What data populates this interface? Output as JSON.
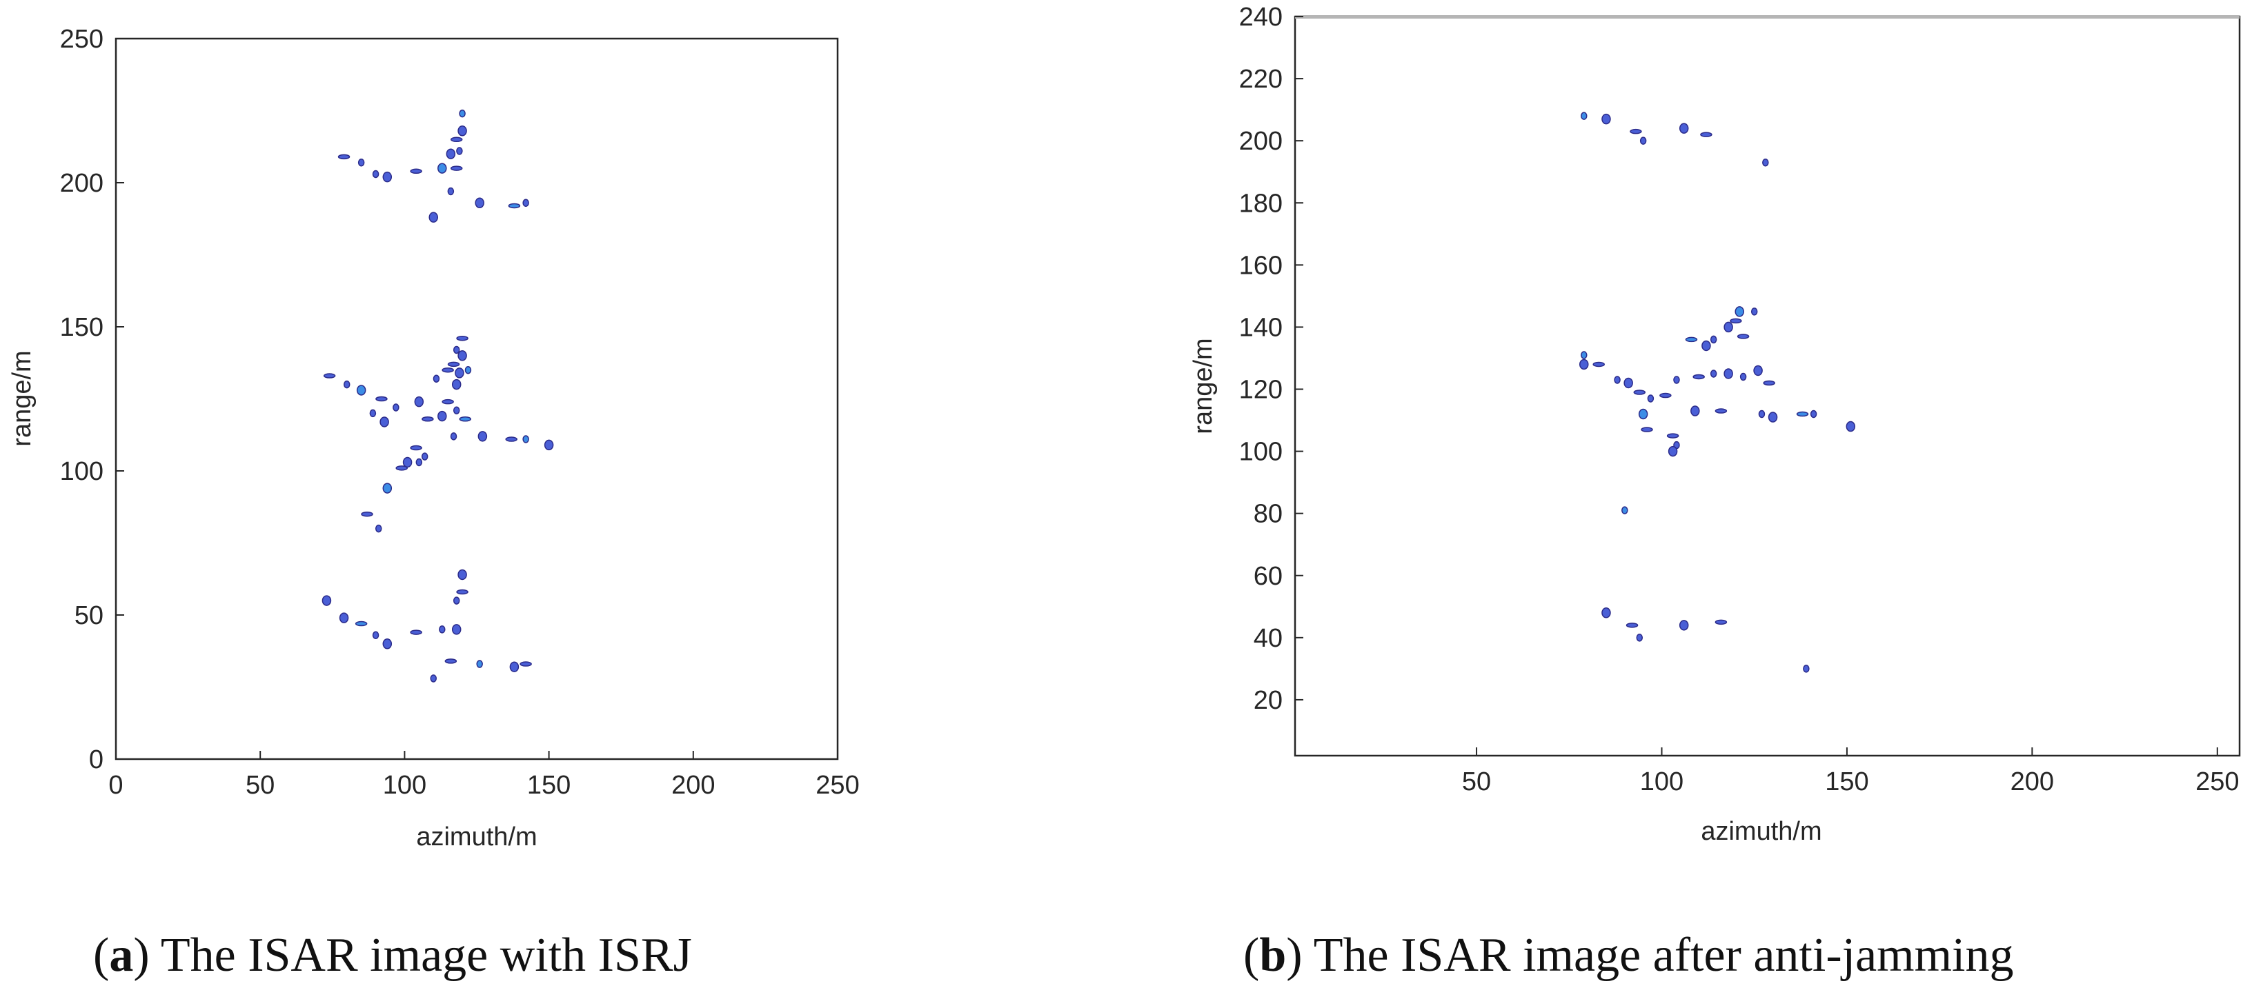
{
  "colors": {
    "blob_fill": "#4a5fd6",
    "blob_stroke": "#2b2b8a",
    "hot": "#3c8de6",
    "axis": "#262626"
  },
  "captions": [
    {
      "label": "a",
      "text": "The ISAR image with ISRJ"
    },
    {
      "label": "b",
      "text": "The ISAR image after anti-jamming"
    }
  ],
  "chart_data": [
    {
      "type": "scatter",
      "title": "",
      "xlabel": "azimuth/m",
      "ylabel": "range/m",
      "xlim": [
        0,
        250
      ],
      "ylim": [
        0,
        250
      ],
      "xticks": [
        "0",
        "50",
        "100",
        "150",
        "200",
        "250"
      ],
      "yticks": [
        "0",
        "50",
        "100",
        "150",
        "200",
        "250"
      ],
      "grid": false,
      "points": [
        [
          120,
          224
        ],
        [
          120,
          218
        ],
        [
          118,
          215
        ],
        [
          119,
          211
        ],
        [
          116,
          210
        ],
        [
          79,
          209
        ],
        [
          85,
          207
        ],
        [
          113,
          205
        ],
        [
          118,
          205
        ],
        [
          90,
          203
        ],
        [
          94,
          202
        ],
        [
          104,
          204
        ],
        [
          116,
          197
        ],
        [
          126,
          193
        ],
        [
          138,
          192
        ],
        [
          142,
          193
        ],
        [
          110,
          188
        ],
        [
          120,
          146
        ],
        [
          118,
          142
        ],
        [
          120,
          140
        ],
        [
          117,
          137
        ],
        [
          122,
          135
        ],
        [
          119,
          134
        ],
        [
          115,
          135
        ],
        [
          111,
          132
        ],
        [
          118,
          130
        ],
        [
          74,
          133
        ],
        [
          80,
          130
        ],
        [
          85,
          128
        ],
        [
          92,
          125
        ],
        [
          97,
          122
        ],
        [
          105,
          124
        ],
        [
          115,
          124
        ],
        [
          118,
          121
        ],
        [
          113,
          119
        ],
        [
          121,
          118
        ],
        [
          89,
          120
        ],
        [
          93,
          117
        ],
        [
          108,
          118
        ],
        [
          117,
          112
        ],
        [
          127,
          112
        ],
        [
          137,
          111
        ],
        [
          142,
          111
        ],
        [
          150,
          109
        ],
        [
          104,
          108
        ],
        [
          107,
          105
        ],
        [
          101,
          103
        ],
        [
          99,
          101
        ],
        [
          105,
          103
        ],
        [
          94,
          94
        ],
        [
          87,
          85
        ],
        [
          91,
          80
        ],
        [
          120,
          64
        ],
        [
          120,
          58
        ],
        [
          118,
          55
        ],
        [
          79,
          49
        ],
        [
          85,
          47
        ],
        [
          90,
          43
        ],
        [
          94,
          40
        ],
        [
          104,
          44
        ],
        [
          113,
          45
        ],
        [
          118,
          45
        ],
        [
          116,
          34
        ],
        [
          126,
          33
        ],
        [
          138,
          32
        ],
        [
          142,
          33
        ],
        [
          110,
          28
        ],
        [
          73,
          55
        ]
      ]
    },
    {
      "type": "scatter",
      "title": "",
      "xlabel": "azimuth/m",
      "ylabel": "range/m",
      "xlim": [
        1,
        256
      ],
      "ylim": [
        2,
        240
      ],
      "xticks": [
        "50",
        "100",
        "150",
        "200",
        "250"
      ],
      "yticks": [
        "20",
        "40",
        "60",
        "80",
        "100",
        "120",
        "140",
        "160",
        "180",
        "200",
        "220",
        "240"
      ],
      "grid": false,
      "points": [
        [
          79,
          208
        ],
        [
          85,
          207
        ],
        [
          93,
          203
        ],
        [
          95,
          200
        ],
        [
          106,
          204
        ],
        [
          112,
          202
        ],
        [
          128,
          193
        ],
        [
          121,
          145
        ],
        [
          120,
          142
        ],
        [
          125,
          145
        ],
        [
          118,
          140
        ],
        [
          122,
          137
        ],
        [
          114,
          136
        ],
        [
          112,
          134
        ],
        [
          108,
          136
        ],
        [
          114,
          125
        ],
        [
          118,
          125
        ],
        [
          110,
          124
        ],
        [
          122,
          124
        ],
        [
          126,
          126
        ],
        [
          129,
          122
        ],
        [
          79,
          131
        ],
        [
          79,
          128
        ],
        [
          83,
          128
        ],
        [
          88,
          123
        ],
        [
          91,
          122
        ],
        [
          94,
          119
        ],
        [
          97,
          117
        ],
        [
          95,
          112
        ],
        [
          101,
          118
        ],
        [
          104,
          123
        ],
        [
          109,
          113
        ],
        [
          116,
          113
        ],
        [
          127,
          112
        ],
        [
          130,
          111
        ],
        [
          138,
          112
        ],
        [
          141,
          112
        ],
        [
          151,
          108
        ],
        [
          103,
          105
        ],
        [
          104,
          102
        ],
        [
          103,
          100
        ],
        [
          96,
          107
        ],
        [
          90,
          81
        ],
        [
          85,
          48
        ],
        [
          92,
          44
        ],
        [
          94,
          40
        ],
        [
          106,
          44
        ],
        [
          116,
          45
        ],
        [
          139,
          30
        ]
      ]
    }
  ]
}
